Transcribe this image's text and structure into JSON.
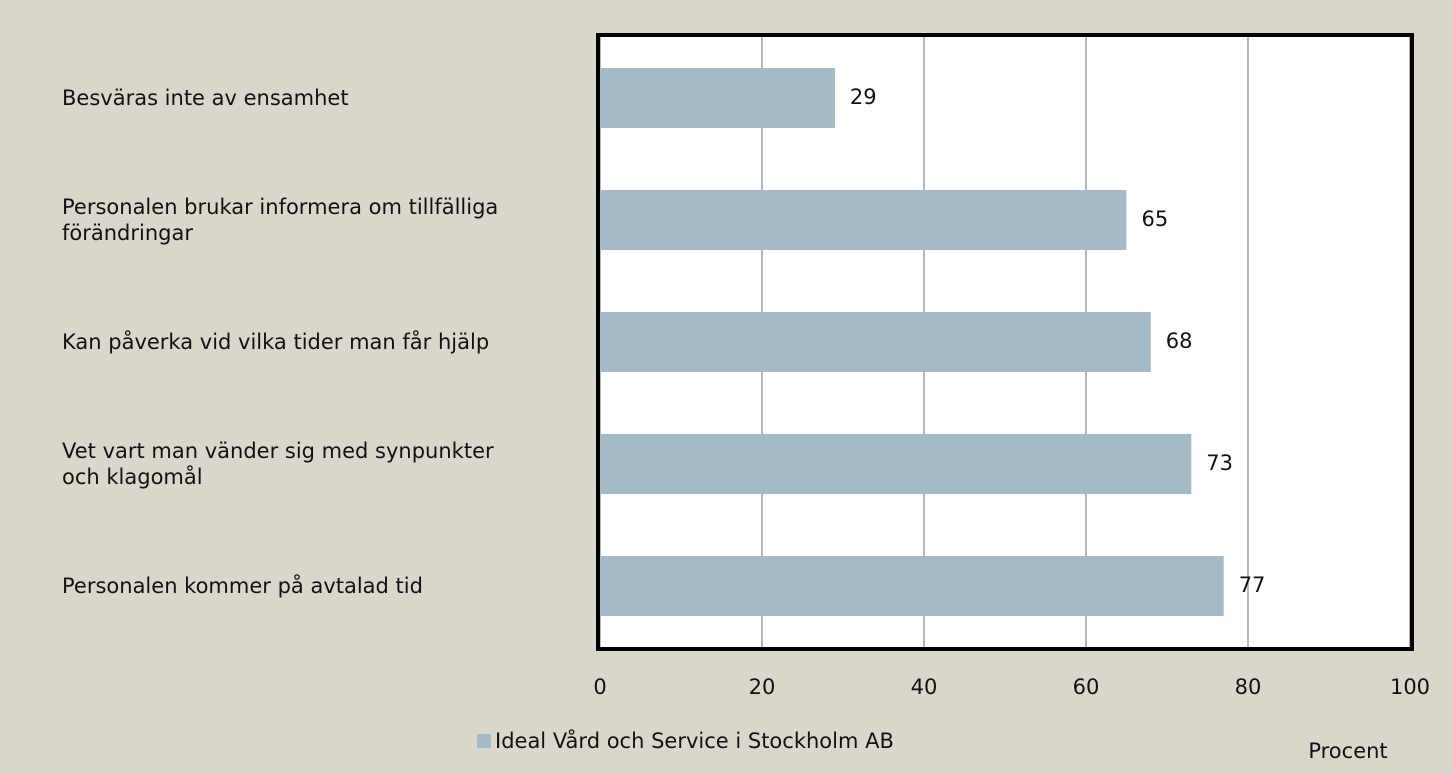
{
  "chart_data": {
    "type": "bar",
    "orientation": "horizontal",
    "categories": [
      "Besväras inte av ensamhet",
      "Personalen brukar informera om tillfälliga förändringar",
      "Kan påverka vid vilka tider man får hjälp",
      "Vet vart man vänder sig med synpunkter och klagomål",
      "Personalen kommer på avtalad tid"
    ],
    "series": [
      {
        "name": "Ideal Vård och Service i Stockholm AB",
        "color": "#a6bac5",
        "values": [
          29,
          65,
          68,
          73,
          77
        ]
      }
    ],
    "xlabel": "Procent",
    "xlim": [
      0,
      100
    ],
    "xticks": [
      0,
      20,
      40,
      60,
      80,
      100
    ],
    "grid": true,
    "legend": "bottom"
  }
}
